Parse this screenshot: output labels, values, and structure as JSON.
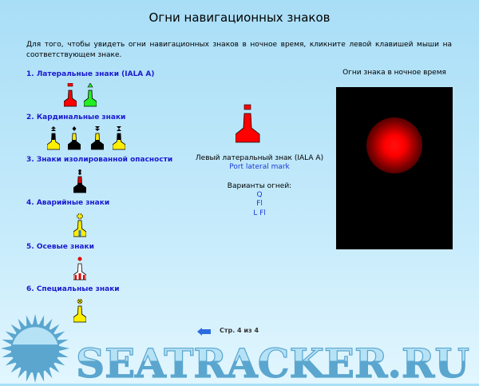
{
  "title": "Огни навигационных знаков",
  "intro": "Для того, чтобы увидеть огни навигационных знаков в ночное время, кликните левой клавишей мыши на соответствующем знаке.",
  "sections": [
    {
      "label": "1. Латеральные знаки (IALA A)",
      "buoys": [
        {
          "name": "port-lateral-buoy",
          "body": "#ff0000",
          "top": "#ff0000",
          "topshape": "square"
        },
        {
          "name": "starboard-lateral-buoy",
          "body": "#22ee22",
          "top": "#22ee22",
          "topshape": "triangle"
        }
      ]
    },
    {
      "label": "2. Кардинальные знаки",
      "buoys": [
        {
          "name": "north-cardinal-buoy",
          "body": "#ffee00",
          "upper": "#000",
          "top": "#000",
          "topshape": "up"
        },
        {
          "name": "east-cardinal-buoy",
          "body": "#000",
          "upper": "#ffee00",
          "top": "#000",
          "topshape": "diamond"
        },
        {
          "name": "south-cardinal-buoy",
          "body": "#000",
          "upper": "#ffee00",
          "top": "#000",
          "topshape": "down"
        },
        {
          "name": "west-cardinal-buoy",
          "body": "#ffee00",
          "upper": "#000",
          "top": "#000",
          "topshape": "hour"
        }
      ]
    },
    {
      "label": "3. Знаки изолированной опасности",
      "buoys": [
        {
          "name": "isolated-danger-buoy",
          "body": "#000",
          "upper": "#dd0000",
          "top": "#000",
          "topshape": "twoballs"
        }
      ]
    },
    {
      "label": "4. Аварийные знаки",
      "buoys": [
        {
          "name": "emergency-wreck-buoy",
          "body": "#ffee00",
          "stripe": "#2a7bd8",
          "top": "#ffee00",
          "topshape": "cross"
        }
      ]
    },
    {
      "label": "5. Осевые знаки",
      "buoys": [
        {
          "name": "safe-water-buoy",
          "body": "#ffffff",
          "stripe": "#dd0000",
          "top": "#dd0000",
          "topshape": "ball"
        }
      ]
    },
    {
      "label": "6. Специальные знаки",
      "buoys": [
        {
          "name": "special-mark-buoy",
          "body": "#ffee00",
          "top": "#ffee00",
          "topshape": "x"
        }
      ]
    }
  ],
  "selected": {
    "caption": "Левый латеральный знак (IALA A)",
    "name_en": "Port lateral mark",
    "variants_label": "Варианты огней:",
    "variants": [
      "Q",
      "Fl",
      "L Fl"
    ],
    "color": "#ff0000"
  },
  "night_label": "Огни знака в ночное время",
  "light_color": "#ff0000",
  "pager": {
    "text": "Стр. 4 из 4",
    "back_icon": "arrow-left-icon"
  },
  "watermark": "SEATRACKER.RU"
}
